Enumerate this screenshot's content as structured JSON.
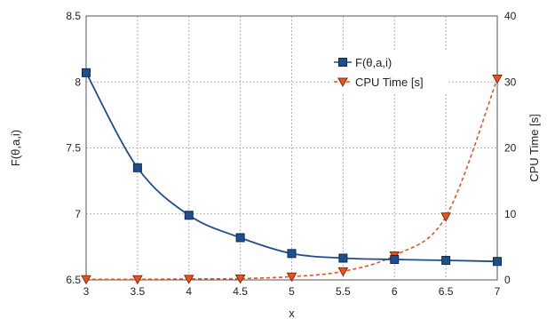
{
  "chart_data": {
    "type": "line",
    "title": "",
    "xlabel": "x",
    "ylabel": "F(θ,a,i)",
    "y2label": "CPU Time [s]",
    "xlim": [
      3,
      7
    ],
    "ylim": [
      6.5,
      8.5
    ],
    "y2lim": [
      0,
      40
    ],
    "x_ticks": [
      "3",
      "3.5",
      "4",
      "4.5",
      "5",
      "5.5",
      "6",
      "6.5",
      "7"
    ],
    "y_ticks": [
      "6.5",
      "7",
      "7.5",
      "8",
      "8.5"
    ],
    "y2_ticks": [
      "0",
      "10",
      "20",
      "30",
      "40"
    ],
    "grid": true,
    "legend_position": "top-right",
    "x": [
      3,
      3.5,
      4,
      4.5,
      5,
      5.5,
      6,
      6.5,
      7
    ],
    "series": [
      {
        "name": "F(θ,a,i)",
        "axis": "left",
        "color": "#1f4e8c",
        "marker": "square",
        "line": "solid",
        "values": [
          8.07,
          7.35,
          6.99,
          6.82,
          6.7,
          6.665,
          6.655,
          6.648,
          6.64
        ]
      },
      {
        "name": "CPU Time [s]",
        "axis": "right",
        "color": "#e8541e",
        "marker": "triangle-down",
        "line": "dashed",
        "values": [
          0.1,
          0.1,
          0.15,
          0.2,
          0.5,
          1.3,
          3.7,
          9.6,
          30.5
        ]
      }
    ]
  }
}
